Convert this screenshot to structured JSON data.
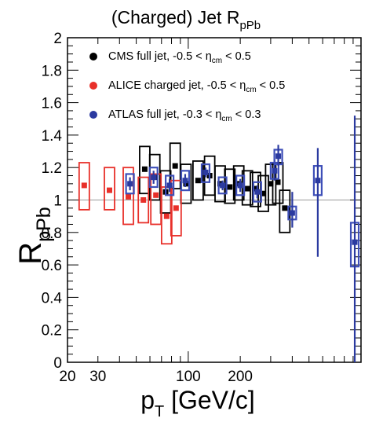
{
  "chart_data": {
    "type": "scatter",
    "title": {
      "main": "(Charged) Jet R",
      "sub": "pPb"
    },
    "xlabel": {
      "main": "p",
      "sub": "T",
      "rest": " [GeV/c]"
    },
    "ylabel": {
      "main": "R",
      "sub": "pPb"
    },
    "x_scale": "log",
    "xlim": [
      20,
      1000
    ],
    "ylim": [
      0,
      2
    ],
    "x_tick_labels": [
      {
        "value": 20,
        "label": "20"
      },
      {
        "value": 30,
        "label": "30"
      },
      {
        "value": 100,
        "label": "100"
      },
      {
        "value": 200,
        "label": "200"
      }
    ],
    "y_tick_labels": [
      "0",
      "0.2",
      "0.4",
      "0.6",
      "0.8",
      "1",
      "1.2",
      "1.4",
      "1.6",
      "1.8",
      "2"
    ],
    "reference_line": 1,
    "grid": false,
    "legend_position": "top",
    "legend": [
      {
        "marker_color": "#000000",
        "text": "CMS full jet, -0.5 < η",
        "sub": "cm",
        "tail": " < 0.5"
      },
      {
        "marker_color": "#e8302a",
        "text": "ALICE charged jet, -0.5 < η",
        "sub": "cm",
        "tail": " < 0.5"
      },
      {
        "marker_color": "#2b3aa0",
        "text": "ATLAS full jet, -0.3 < η",
        "sub": "cm",
        "tail": " < 0.3"
      }
    ],
    "series": [
      {
        "name": "CMS full jet",
        "color": "#000000",
        "box_color": "#000000",
        "points": [
          {
            "x": 56,
            "y": 1.19,
            "sys": [
              1.04,
              1.33
            ]
          },
          {
            "x": 64,
            "y": 1.14,
            "sys": [
              1.0,
              1.28
            ]
          },
          {
            "x": 74,
            "y": 1.05,
            "sys": [
              0.92,
              1.18
            ]
          },
          {
            "x": 84,
            "y": 1.21,
            "sys": [
              1.07,
              1.35
            ]
          },
          {
            "x": 97,
            "y": 1.1,
            "sys": [
              0.98,
              1.22
            ]
          },
          {
            "x": 114,
            "y": 1.12,
            "sys": [
              1.0,
              1.24
            ]
          },
          {
            "x": 133,
            "y": 1.15,
            "sys": [
              1.03,
              1.27
            ]
          },
          {
            "x": 153,
            "y": 1.1,
            "sys": [
              0.99,
              1.21
            ]
          },
          {
            "x": 174,
            "y": 1.08,
            "sys": [
              0.98,
              1.19
            ]
          },
          {
            "x": 196,
            "y": 1.1,
            "sys": [
              1.0,
              1.21
            ]
          },
          {
            "x": 220,
            "y": 1.07,
            "sys": [
              0.97,
              1.18
            ]
          },
          {
            "x": 245,
            "y": 1.07,
            "sys": [
              0.96,
              1.17
            ]
          },
          {
            "x": 272,
            "y": 1.04,
            "sys": [
              0.93,
              1.15
            ]
          },
          {
            "x": 300,
            "y": 1.1,
            "sys": [
              0.97,
              1.22
            ]
          },
          {
            "x": 330,
            "y": 1.11,
            "sys": [
              0.98,
              1.23
            ]
          },
          {
            "x": 362,
            "y": 0.95,
            "sys": [
              0.8,
              1.06
            ]
          }
        ]
      },
      {
        "name": "ALICE charged jet",
        "color": "#e8302a",
        "box_color": "#e8302a",
        "points": [
          {
            "x": 25,
            "y": 1.09,
            "sys": [
              0.94,
              1.23
            ]
          },
          {
            "x": 35,
            "y": 1.06,
            "sys": [
              0.94,
              1.2
            ]
          },
          {
            "x": 45,
            "y": 1.02,
            "sys": [
              0.85,
              1.2
            ]
          },
          {
            "x": 55,
            "y": 1.0,
            "sys": [
              0.86,
              1.14
            ]
          },
          {
            "x": 65,
            "y": 1.03,
            "sys": [
              0.85,
              1.16
            ]
          },
          {
            "x": 75,
            "y": 0.9,
            "sys": [
              0.73,
              1.08
            ]
          },
          {
            "x": 85,
            "y": 0.95,
            "sys": [
              0.78,
              1.12
            ]
          }
        ]
      },
      {
        "name": "ATLAS full jet",
        "color": "#2b3aa0",
        "box_color": "#3e4fb8",
        "points": [
          {
            "x": 46,
            "y": 1.1,
            "stat": [
              1.06,
              1.14
            ],
            "sys": [
              1.04,
              1.16
            ]
          },
          {
            "x": 63,
            "y": 1.14,
            "stat": [
              1.1,
              1.18
            ],
            "sys": [
              1.08,
              1.2
            ]
          },
          {
            "x": 78,
            "y": 1.09,
            "stat": [
              1.05,
              1.13
            ],
            "sys": [
              1.03,
              1.15
            ]
          },
          {
            "x": 96,
            "y": 1.12,
            "stat": [
              1.08,
              1.16
            ],
            "sys": [
              1.06,
              1.18
            ]
          },
          {
            "x": 126,
            "y": 1.17,
            "stat": [
              1.14,
              1.2
            ],
            "sys": [
              1.11,
              1.22
            ]
          },
          {
            "x": 158,
            "y": 1.09,
            "stat": [
              1.06,
              1.12
            ],
            "sys": [
              1.04,
              1.14
            ]
          },
          {
            "x": 200,
            "y": 1.09,
            "stat": [
              1.05,
              1.13
            ],
            "sys": [
              1.03,
              1.15
            ]
          },
          {
            "x": 251,
            "y": 1.05,
            "stat": [
              1.01,
              1.09
            ],
            "sys": [
              0.99,
              1.11
            ]
          },
          {
            "x": 316,
            "y": 1.18,
            "stat": [
              1.12,
              1.25
            ],
            "sys": [
              1.13,
              1.23
            ]
          },
          {
            "x": 332,
            "y": 1.27,
            "stat": [
              1.21,
              1.34
            ],
            "sys": [
              1.22,
              1.31
            ]
          },
          {
            "x": 400,
            "y": 0.92,
            "stat": [
              0.83,
              1.05
            ],
            "sys": [
              0.88,
              0.96
            ]
          },
          {
            "x": 562,
            "y": 1.12,
            "stat": [
              0.65,
              1.32
            ],
            "sys": [
              1.03,
              1.21
            ]
          },
          {
            "x": 920,
            "y": 0.74,
            "stat": [
              0.0,
              1.52
            ],
            "sys": [
              0.59,
              0.86
            ]
          }
        ]
      }
    ]
  }
}
